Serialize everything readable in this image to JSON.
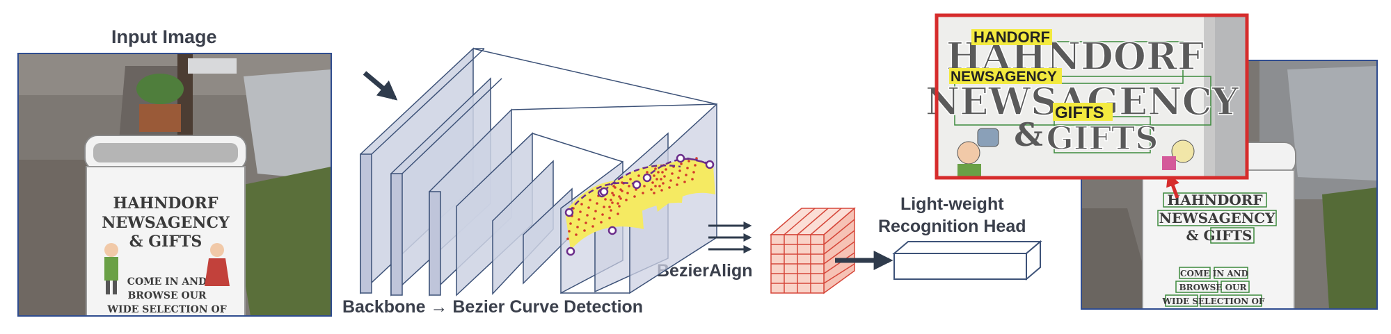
{
  "input_image": {
    "title": "Input Image",
    "sign_lines": [
      "HAHNDORF",
      "NEWSAGENCY",
      "& GIFTS",
      "COME IN AND",
      "BROWSE OUR",
      "WIDE SELECTION OF"
    ]
  },
  "backbone": {
    "label": "Backbone → Bezier Curve Detection"
  },
  "bezier_align": {
    "label": "BezierAlign"
  },
  "recognition_head": {
    "line1": "Light-weight",
    "line2": "Recognition Head"
  },
  "output": {
    "highlights": [
      "HANDORF",
      "NEWSAGENCY",
      "GIFTS"
    ],
    "zoom_words": [
      "HAHNDORF",
      "NEWSAGENCY",
      "&",
      "GIFTS"
    ],
    "small_sign_lines": [
      "HAHNDORF",
      "NEWSAGENCY",
      "& GIFTS",
      "COME IN AND",
      "BROWSE OUR",
      "WIDE SELECTION OF"
    ]
  },
  "colors": {
    "plane_fill": "#cdd2e3",
    "plane_stroke": "#3d5278",
    "bezier_curve": "#6b2d8a",
    "roi_fill": "#f5ea62",
    "sample_dot": "#d23a2b",
    "grid_fill": "#f9d3c8",
    "grid_stroke": "#d6473a",
    "zoom_border": "#d62c2c",
    "highlight": "#f3ea3f",
    "box_green": "#3c8a3c",
    "arrow": "#2f3b4c"
  }
}
